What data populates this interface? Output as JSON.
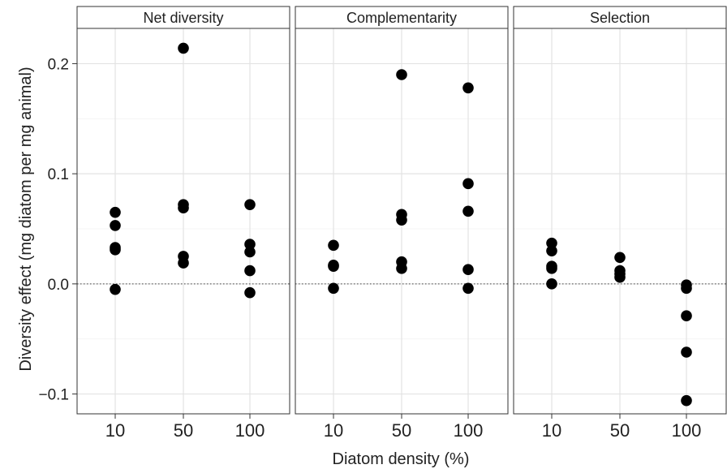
{
  "chart_data": {
    "type": "scatter",
    "facet_variable": "effect component",
    "ylabel": "Diversity effect (mg diatom per mg animal)",
    "xlabel": "Diatom density (%)",
    "categories": [
      "10",
      "50",
      "100"
    ],
    "ylim": [
      -0.118,
      0.232
    ],
    "yticks": [
      -0.1,
      0.0,
      0.1,
      0.2
    ],
    "ytick_labels": [
      "−0.1",
      "0.0",
      "0.1",
      "0.2"
    ],
    "reference_line": {
      "y": 0,
      "style": "dotted"
    },
    "grid": true,
    "point_color": "#000000",
    "facets": [
      {
        "name": "Net diversity",
        "points": [
          {
            "x": "10",
            "y": 0.065
          },
          {
            "x": "10",
            "y": 0.053
          },
          {
            "x": "10",
            "y": 0.033
          },
          {
            "x": "10",
            "y": 0.031
          },
          {
            "x": "10",
            "y": -0.005
          },
          {
            "x": "50",
            "y": 0.214
          },
          {
            "x": "50",
            "y": 0.072
          },
          {
            "x": "50",
            "y": 0.069
          },
          {
            "x": "50",
            "y": 0.025
          },
          {
            "x": "50",
            "y": 0.019
          },
          {
            "x": "100",
            "y": 0.072
          },
          {
            "x": "100",
            "y": 0.036
          },
          {
            "x": "100",
            "y": 0.029
          },
          {
            "x": "100",
            "y": 0.012
          },
          {
            "x": "100",
            "y": -0.008
          }
        ]
      },
      {
        "name": "Complementarity",
        "points": [
          {
            "x": "10",
            "y": 0.035
          },
          {
            "x": "10",
            "y": 0.017
          },
          {
            "x": "10",
            "y": 0.016
          },
          {
            "x": "10",
            "y": -0.004
          },
          {
            "x": "50",
            "y": 0.19
          },
          {
            "x": "50",
            "y": 0.063
          },
          {
            "x": "50",
            "y": 0.058
          },
          {
            "x": "50",
            "y": 0.02
          },
          {
            "x": "50",
            "y": 0.014
          },
          {
            "x": "100",
            "y": 0.178
          },
          {
            "x": "100",
            "y": 0.091
          },
          {
            "x": "100",
            "y": 0.066
          },
          {
            "x": "100",
            "y": 0.013
          },
          {
            "x": "100",
            "y": -0.004
          }
        ]
      },
      {
        "name": "Selection",
        "points": [
          {
            "x": "10",
            "y": 0.037
          },
          {
            "x": "10",
            "y": 0.03
          },
          {
            "x": "10",
            "y": 0.016
          },
          {
            "x": "10",
            "y": 0.014
          },
          {
            "x": "10",
            "y": 0.0
          },
          {
            "x": "50",
            "y": 0.024
          },
          {
            "x": "50",
            "y": 0.012
          },
          {
            "x": "50",
            "y": 0.009
          },
          {
            "x": "50",
            "y": 0.006
          },
          {
            "x": "100",
            "y": -0.001
          },
          {
            "x": "100",
            "y": -0.004
          },
          {
            "x": "100",
            "y": -0.029
          },
          {
            "x": "100",
            "y": -0.062
          },
          {
            "x": "100",
            "y": -0.106
          }
        ]
      }
    ]
  }
}
